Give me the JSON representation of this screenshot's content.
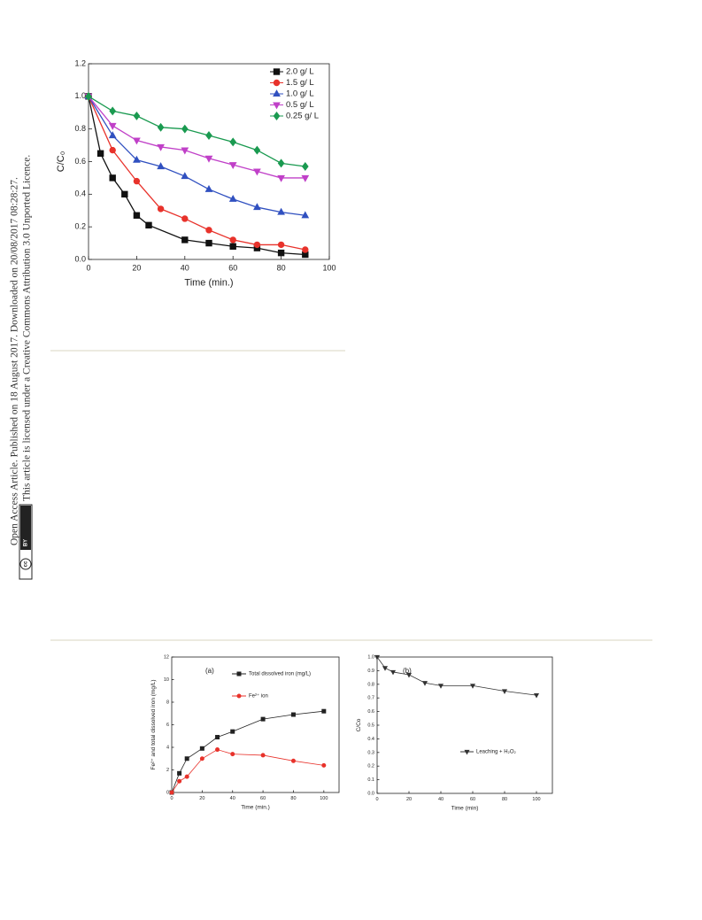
{
  "side_text": [
    "Open Access Article. Published on 18 August 2017. Downloaded on 20/08/2017 08:28:27.",
    "This article is licensed under a Creative Commons Attribution 3.0 Unported Licence."
  ],
  "license_badge": {
    "icon": "cc",
    "text": "BY"
  },
  "chart_data": [
    {
      "type": "line",
      "x_label": "Time (min.)",
      "y_label": "C/C₀",
      "xlim": [
        0,
        100
      ],
      "xticks": [
        0,
        20,
        40,
        60,
        80,
        100
      ],
      "ylim": [
        0,
        1.2
      ],
      "yticks": [
        {
          "value": 0,
          "label": "0.0"
        },
        0.2,
        0.4,
        0.6,
        0.8,
        {
          "value": 1,
          "label": "1.0"
        },
        1.2
      ],
      "series": [
        {
          "name": "2.0 g/ L",
          "color": "#111111",
          "marker": "square",
          "x": [
            0,
            5,
            10,
            15,
            20,
            25,
            40,
            50,
            60,
            70,
            80,
            90
          ],
          "values": [
            1.0,
            0.65,
            0.5,
            0.4,
            0.27,
            0.21,
            0.12,
            0.1,
            0.08,
            0.07,
            0.04,
            0.03
          ]
        },
        {
          "name": "1.5 g/ L",
          "color": "#e8322b",
          "marker": "circle",
          "x": [
            0,
            10,
            20,
            30,
            40,
            50,
            60,
            70,
            80,
            90
          ],
          "values": [
            1.0,
            0.67,
            0.48,
            0.31,
            0.25,
            0.18,
            0.12,
            0.09,
            0.09,
            0.06
          ]
        },
        {
          "name": "1.0 g/ L",
          "color": "#3050c0",
          "marker": "triangle",
          "x": [
            0,
            10,
            20,
            30,
            40,
            50,
            60,
            70,
            80,
            90
          ],
          "values": [
            1.0,
            0.76,
            0.61,
            0.57,
            0.51,
            0.43,
            0.37,
            0.32,
            0.29,
            0.27
          ]
        },
        {
          "name": "0.5 g/ L",
          "color": "#c040c8",
          "marker": "down-triangle",
          "x": [
            0,
            10,
            20,
            30,
            40,
            50,
            60,
            70,
            80,
            90
          ],
          "values": [
            1.0,
            0.82,
            0.73,
            0.69,
            0.67,
            0.62,
            0.58,
            0.54,
            0.5,
            0.5
          ]
        },
        {
          "name": "0.25 g/ L",
          "color": "#1a9a50",
          "marker": "diamond",
          "x": [
            0,
            10,
            20,
            30,
            40,
            50,
            60,
            70,
            80,
            90
          ],
          "values": [
            1.0,
            0.91,
            0.88,
            0.81,
            0.8,
            0.76,
            0.72,
            0.67,
            0.59,
            0.57
          ]
        }
      ]
    },
    {
      "type": "line",
      "annotation": "(a)",
      "x_label": "Time (min.)",
      "y_label": "Fe²⁺ and total dissolved iron (mg/L)",
      "xlim": [
        0,
        110
      ],
      "xticks": [
        0,
        20,
        40,
        60,
        80,
        100
      ],
      "ylim": [
        0,
        12
      ],
      "yticks": [
        0,
        2,
        4,
        6,
        8,
        10,
        12
      ],
      "series": [
        {
          "name": "Total dissolved iron (mg/L)",
          "color": "#222222",
          "marker": "square",
          "x": [
            0,
            5,
            10,
            20,
            30,
            40,
            60,
            80,
            100
          ],
          "values": [
            0,
            1.7,
            3.0,
            3.9,
            4.9,
            5.4,
            6.5,
            6.9,
            7.2
          ]
        },
        {
          "name": "Fe²⁺ ion",
          "color": "#e8322b",
          "marker": "circle",
          "x": [
            0,
            5,
            10,
            20,
            30,
            40,
            60,
            80,
            100
          ],
          "values": [
            0,
            1.0,
            1.4,
            3.0,
            3.8,
            3.4,
            3.3,
            2.8,
            2.4
          ]
        }
      ]
    },
    {
      "type": "line",
      "annotation": "(b)",
      "x_label": "Time (min)",
      "y_label": "C/Co",
      "xlim": [
        0,
        110
      ],
      "xticks": [
        0,
        20,
        40,
        60,
        80,
        100
      ],
      "ylim": [
        0,
        1
      ],
      "yticks": [
        {
          "value": 0,
          "label": "0.0"
        },
        0.1,
        0.2,
        0.3,
        0.4,
        0.5,
        0.6,
        0.7,
        0.8,
        0.9,
        {
          "value": 1,
          "label": "1.0"
        }
      ],
      "series": [
        {
          "name": "Leaching + H₂O₂",
          "color": "#333333",
          "marker": "down-triangle",
          "x": [
            0,
            5,
            10,
            20,
            30,
            40,
            60,
            80,
            100
          ],
          "values": [
            1.0,
            0.92,
            0.89,
            0.87,
            0.81,
            0.79,
            0.79,
            0.75,
            0.72
          ]
        }
      ]
    }
  ]
}
